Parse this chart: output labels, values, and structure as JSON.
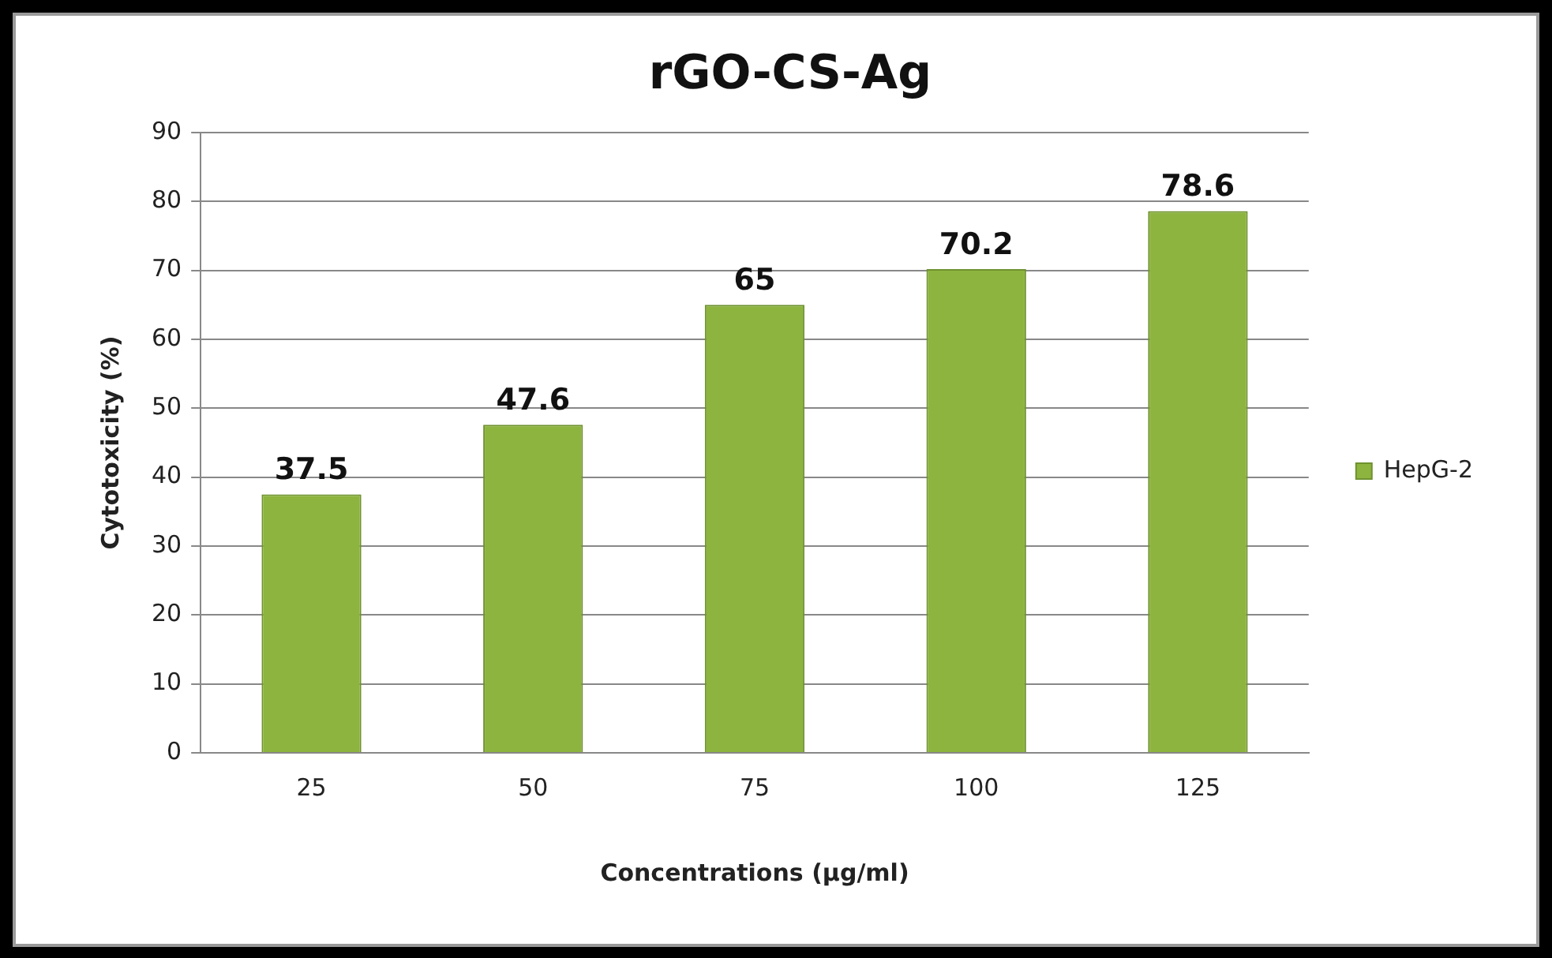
{
  "chart_data": {
    "type": "bar",
    "title": "rGO-CS-Ag",
    "xlabel": "Concentrations (µg/ml)",
    "ylabel": "Cytotoxicity (%)",
    "categories": [
      "25",
      "50",
      "75",
      "100",
      "125"
    ],
    "series": [
      {
        "name": "HepG-2",
        "color": "#8db43e",
        "values": [
          37.5,
          47.6,
          65,
          70.2,
          78.6
        ]
      }
    ],
    "ylim": [
      0,
      90
    ],
    "yticks": [
      0,
      10,
      20,
      30,
      40,
      50,
      60,
      70,
      80,
      90
    ],
    "grid": "y",
    "legend": "right",
    "data_labels": true
  }
}
